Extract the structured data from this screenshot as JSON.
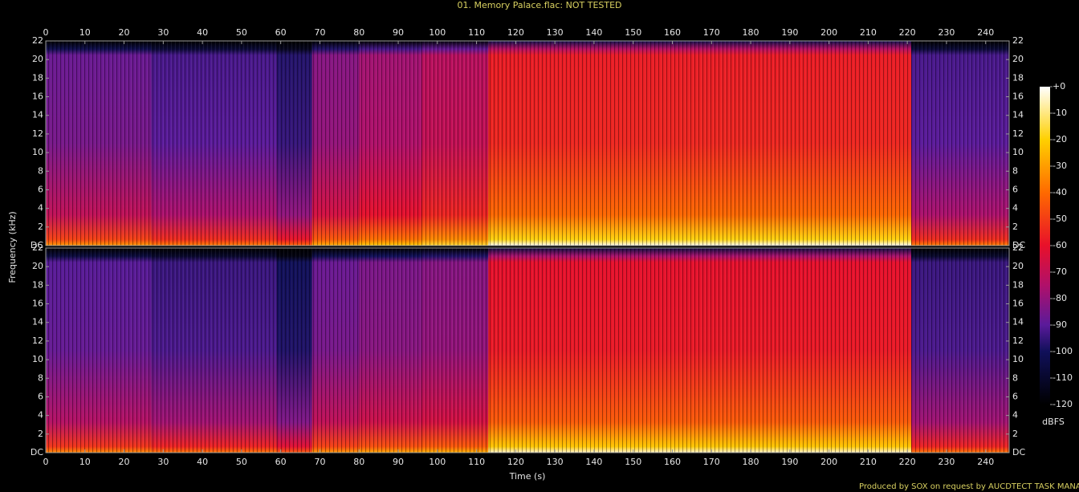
{
  "chart_data": {
    "type": "spectrogram",
    "title": "01. Memory Palace.flac: NOT TESTED",
    "xlabel": "Time (s)",
    "ylabel": "Frequency (kHz)",
    "xlim": [
      0,
      246
    ],
    "xticks": [
      0,
      10,
      20,
      30,
      40,
      50,
      60,
      70,
      80,
      90,
      100,
      110,
      120,
      130,
      140,
      150,
      160,
      170,
      180,
      190,
      200,
      210,
      220,
      230,
      240
    ],
    "ylim": [
      0,
      22
    ],
    "yticks": [
      {
        "value": 0,
        "label": "DC"
      },
      2,
      4,
      6,
      8,
      10,
      12,
      14,
      16,
      18,
      20,
      22
    ],
    "time_edges": [
      0,
      27,
      59,
      68,
      80,
      96,
      113,
      221,
      246
    ],
    "series": [
      {
        "values": [
          -85,
          -90,
          -95,
          -80,
          -75,
          -70,
          -55,
          -90
        ]
      },
      {
        "values": [
          -88,
          -92,
          -98,
          -85,
          -82,
          -80,
          -58,
          -92
        ]
      }
    ],
    "colorbar": {
      "label": "dBFS",
      "clim": [
        -120,
        0
      ],
      "ticks": [
        {
          "value": 0,
          "label": "+0"
        },
        -10,
        -20,
        -30,
        -40,
        -50,
        -60,
        -70,
        -80,
        -90,
        -100,
        -110,
        -120
      ]
    }
  },
  "footer": "Produced by SOX on request by AUCDTECT TASK MANAGER"
}
